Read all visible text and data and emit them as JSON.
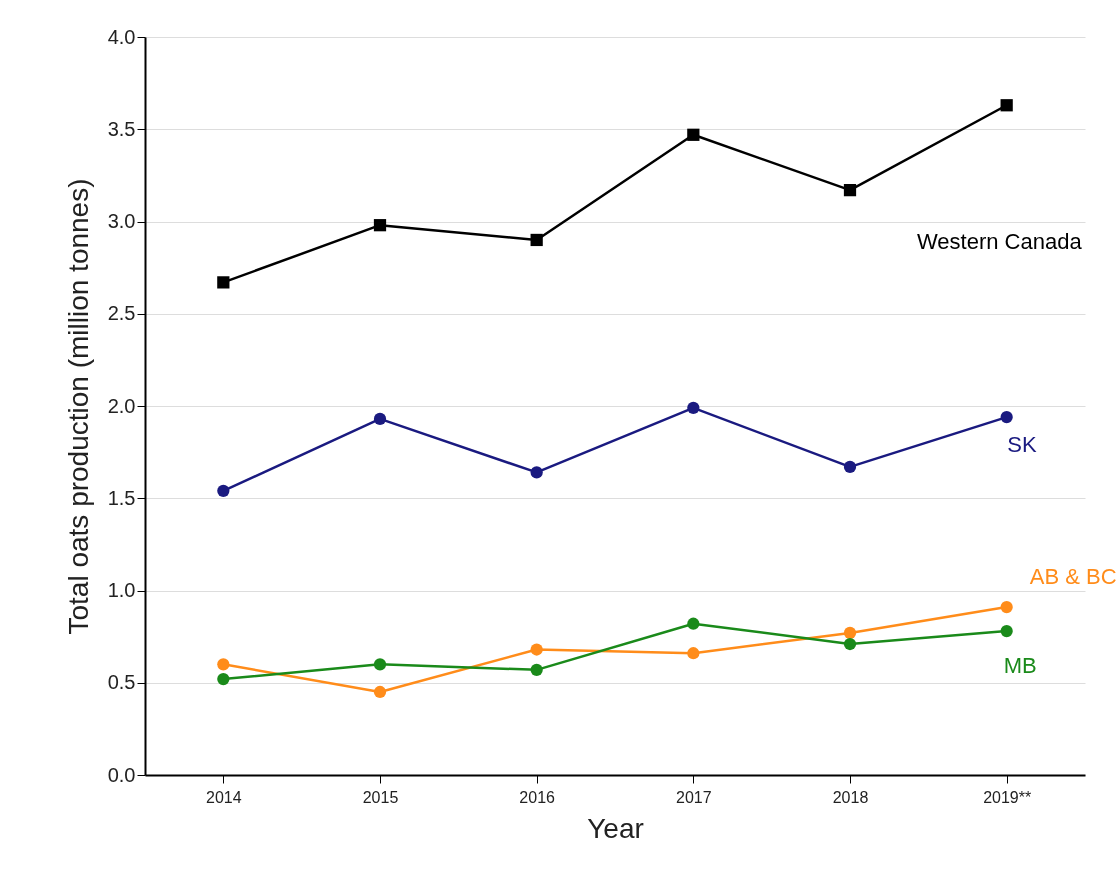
{
  "chart_data": {
    "type": "line",
    "xlabel": "Year",
    "ylabel": "Total oats production (million tonnes)",
    "categories": [
      "2014",
      "2015",
      "2016",
      "2017",
      "2018",
      "2019**"
    ],
    "series": [
      {
        "name": "Western Canada",
        "color": "#000000",
        "marker": "square",
        "values": [
          2.67,
          2.98,
          2.9,
          3.47,
          3.17,
          3.63
        ]
      },
      {
        "name": "SK",
        "color": "#1a1a80",
        "marker": "circle",
        "values": [
          1.54,
          1.93,
          1.64,
          1.99,
          1.67,
          1.94
        ]
      },
      {
        "name": "AB & BC",
        "color": "#ff8c1a",
        "marker": "circle",
        "values": [
          0.6,
          0.45,
          0.68,
          0.66,
          0.77,
          0.91
        ]
      },
      {
        "name": "MB",
        "color": "#1a8a1a",
        "marker": "circle",
        "values": [
          0.52,
          0.6,
          0.57,
          0.82,
          0.71,
          0.78
        ]
      }
    ],
    "ylim": [
      0,
      4
    ],
    "yticks": [
      {
        "value": 0,
        "label": "0.0"
      },
      {
        "value": 0.5,
        "label": "0.5"
      },
      {
        "value": 1,
        "label": "1.0"
      },
      {
        "value": 1.5,
        "label": "1.5"
      },
      {
        "value": 2,
        "label": "2.0"
      },
      {
        "value": 2.5,
        "label": "2.5"
      },
      {
        "value": 3,
        "label": "3.0"
      },
      {
        "value": 3.5,
        "label": "3.5"
      },
      {
        "value": 4,
        "label": "4.0"
      }
    ],
    "grid": "y"
  }
}
